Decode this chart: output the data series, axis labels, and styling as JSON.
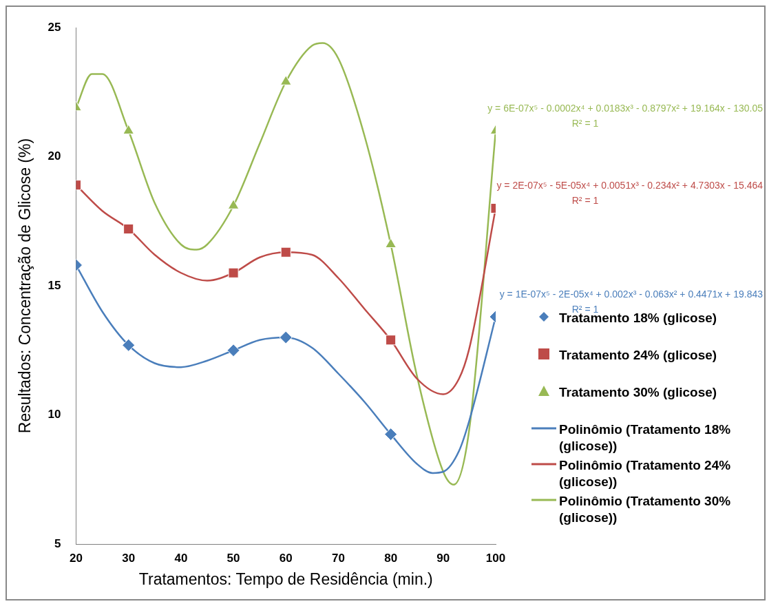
{
  "chart_data": {
    "type": "scatter",
    "xlabel": "Tratamentos: Tempo de Residência (min.)",
    "ylabel": "Resultados: Concentração de Glicose (%)",
    "x": [
      20,
      30,
      50,
      60,
      80,
      100
    ],
    "series": [
      {
        "name": "Tratamento 18% (glicose)",
        "color": "#4a7ebb",
        "marker": "diamond",
        "values": [
          15.8,
          12.7,
          12.5,
          13.0,
          9.25,
          13.8
        ]
      },
      {
        "name": "Tratamento 24% (glicose)",
        "color": "#be4b48",
        "marker": "square",
        "values": [
          18.9,
          17.2,
          15.5,
          16.3,
          12.9,
          18.0
        ]
      },
      {
        "name": "Tratamento 30% (glicose)",
        "color": "#98b954",
        "marker": "triangle",
        "values": [
          21.9,
          21.0,
          18.1,
          22.9,
          16.6,
          21.0
        ]
      },
      {
        "name": "Polinômio (Tratamento 18% (glicose))",
        "type": "line",
        "color": "#4a7ebb",
        "marker": "none",
        "x": [
          20,
          25,
          30,
          35,
          40,
          45,
          50,
          55,
          60,
          65,
          70,
          75,
          80,
          85,
          88,
          90,
          93,
          95,
          100
        ],
        "values": [
          15.8,
          14.0,
          12.7,
          12.0,
          11.85,
          12.1,
          12.5,
          12.9,
          13.0,
          12.6,
          11.6,
          10.5,
          9.25,
          8.1,
          7.75,
          7.8,
          8.6,
          9.8,
          13.8
        ]
      },
      {
        "name": "Polinômio (Tratamento 24% (glicose))",
        "type": "line",
        "color": "#be4b48",
        "marker": "none",
        "x": [
          20,
          25,
          30,
          35,
          40,
          45,
          50,
          55,
          60,
          65,
          70,
          75,
          80,
          85,
          90,
          93,
          95,
          100
        ],
        "values": [
          18.9,
          17.9,
          17.2,
          16.2,
          15.5,
          15.2,
          15.5,
          16.1,
          16.3,
          16.2,
          15.3,
          14.1,
          12.9,
          11.4,
          10.8,
          11.4,
          12.6,
          18.0
        ]
      },
      {
        "name": "Polinômio (Tratamento 30% (glicose))",
        "type": "line",
        "color": "#98b954",
        "marker": "none",
        "x": [
          20,
          23,
          25,
          30,
          35,
          40,
          43,
          45,
          50,
          55,
          60,
          65,
          67,
          70,
          75,
          80,
          85,
          90,
          92,
          95,
          100
        ],
        "values": [
          21.9,
          23.2,
          23.2,
          21.0,
          18.2,
          16.6,
          16.4,
          16.6,
          18.1,
          20.5,
          22.9,
          24.3,
          24.4,
          23.8,
          20.8,
          16.6,
          11.5,
          7.8,
          7.3,
          9.5,
          21.0
        ]
      }
    ],
    "xlim": [
      20,
      100
    ],
    "xticks": [
      20,
      30,
      40,
      50,
      60,
      70,
      80,
      90,
      100
    ],
    "ylim": [
      5,
      25
    ],
    "yticks": [
      5,
      10,
      15,
      20,
      25
    ],
    "grid": false,
    "legend": "right",
    "annotations": [
      "y = 6E-07x⁵ - 0.0002x⁴ + 0.0183x³ - 0.8797x² + 19.164x - 130.05",
      "R² = 1",
      "y = 2E-07x⁵ - 5E-05x⁴ + 0.0051x³ - 0.234x² + 4.7303x - 15.464",
      "R² = 1",
      "y = 1E-07x⁵ - 2E-05x⁴ + 0.002x³ - 0.063x² + 0.4471x + 19.843",
      "R² = 1"
    ]
  }
}
